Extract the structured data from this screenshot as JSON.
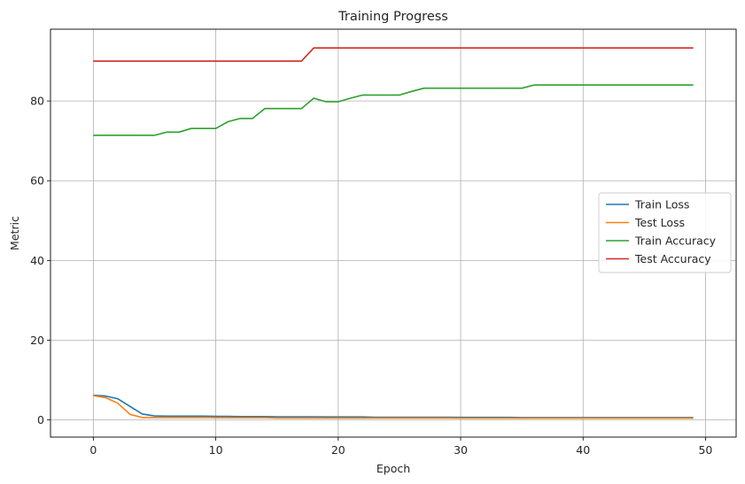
{
  "chart_data": {
    "type": "line",
    "title": "Training Progress",
    "xlabel": "Epoch",
    "ylabel": "Metric",
    "xlim": [
      -3.5,
      52.5
    ],
    "ylim": [
      -4.3,
      98
    ],
    "xticks": [
      0,
      10,
      20,
      30,
      40,
      50
    ],
    "yticks": [
      0,
      20,
      40,
      60,
      80
    ],
    "grid": true,
    "legend_position": "center-right",
    "series": [
      {
        "name": "Train Loss",
        "color": "#1f77b4",
        "values": [
          6.2,
          6.0,
          5.3,
          3.4,
          1.5,
          1.0,
          0.95,
          0.95,
          0.95,
          0.95,
          0.9,
          0.9,
          0.85,
          0.85,
          0.85,
          0.8,
          0.8,
          0.8,
          0.8,
          0.75,
          0.75,
          0.75,
          0.75,
          0.7,
          0.7,
          0.7,
          0.7,
          0.7,
          0.7,
          0.7,
          0.65,
          0.65,
          0.65,
          0.65,
          0.65,
          0.6,
          0.6,
          0.6,
          0.6,
          0.6,
          0.6,
          0.6,
          0.6,
          0.6,
          0.6,
          0.6,
          0.6,
          0.6,
          0.6,
          0.6
        ]
      },
      {
        "name": "Test Loss",
        "color": "#ff7f0e",
        "values": [
          6.1,
          5.6,
          4.2,
          1.4,
          0.6,
          0.6,
          0.6,
          0.6,
          0.6,
          0.6,
          0.55,
          0.55,
          0.55,
          0.55,
          0.55,
          0.5,
          0.5,
          0.5,
          0.5,
          0.5,
          0.5,
          0.5,
          0.5,
          0.5,
          0.5,
          0.5,
          0.5,
          0.5,
          0.5,
          0.5,
          0.45,
          0.45,
          0.45,
          0.45,
          0.45,
          0.45,
          0.45,
          0.45,
          0.45,
          0.45,
          0.45,
          0.45,
          0.45,
          0.45,
          0.45,
          0.45,
          0.45,
          0.45,
          0.45,
          0.45
        ]
      },
      {
        "name": "Train Accuracy",
        "color": "#2ca02c",
        "values": [
          71.4,
          71.4,
          71.4,
          71.4,
          71.4,
          71.4,
          72.2,
          72.2,
          73.1,
          73.1,
          73.1,
          74.8,
          75.6,
          75.6,
          78.1,
          78.1,
          78.1,
          78.1,
          80.7,
          79.8,
          79.8,
          80.7,
          81.5,
          81.5,
          81.5,
          81.5,
          82.4,
          83.2,
          83.2,
          83.2,
          83.2,
          83.2,
          83.2,
          83.2,
          83.2,
          83.2,
          84.0,
          84.0,
          84.0,
          84.0,
          84.0,
          84.0,
          84.0,
          84.0,
          84.0,
          84.0,
          84.0,
          84.0,
          84.0,
          84.0
        ]
      },
      {
        "name": "Test Accuracy",
        "color": "#d62728",
        "values": [
          90.0,
          90.0,
          90.0,
          90.0,
          90.0,
          90.0,
          90.0,
          90.0,
          90.0,
          90.0,
          90.0,
          90.0,
          90.0,
          90.0,
          90.0,
          90.0,
          90.0,
          90.0,
          93.3,
          93.3,
          93.3,
          93.3,
          93.3,
          93.3,
          93.3,
          93.3,
          93.3,
          93.3,
          93.3,
          93.3,
          93.3,
          93.3,
          93.3,
          93.3,
          93.3,
          93.3,
          93.3,
          93.3,
          93.3,
          93.3,
          93.3,
          93.3,
          93.3,
          93.3,
          93.3,
          93.3,
          93.3,
          93.3,
          93.3,
          93.3
        ]
      }
    ]
  }
}
